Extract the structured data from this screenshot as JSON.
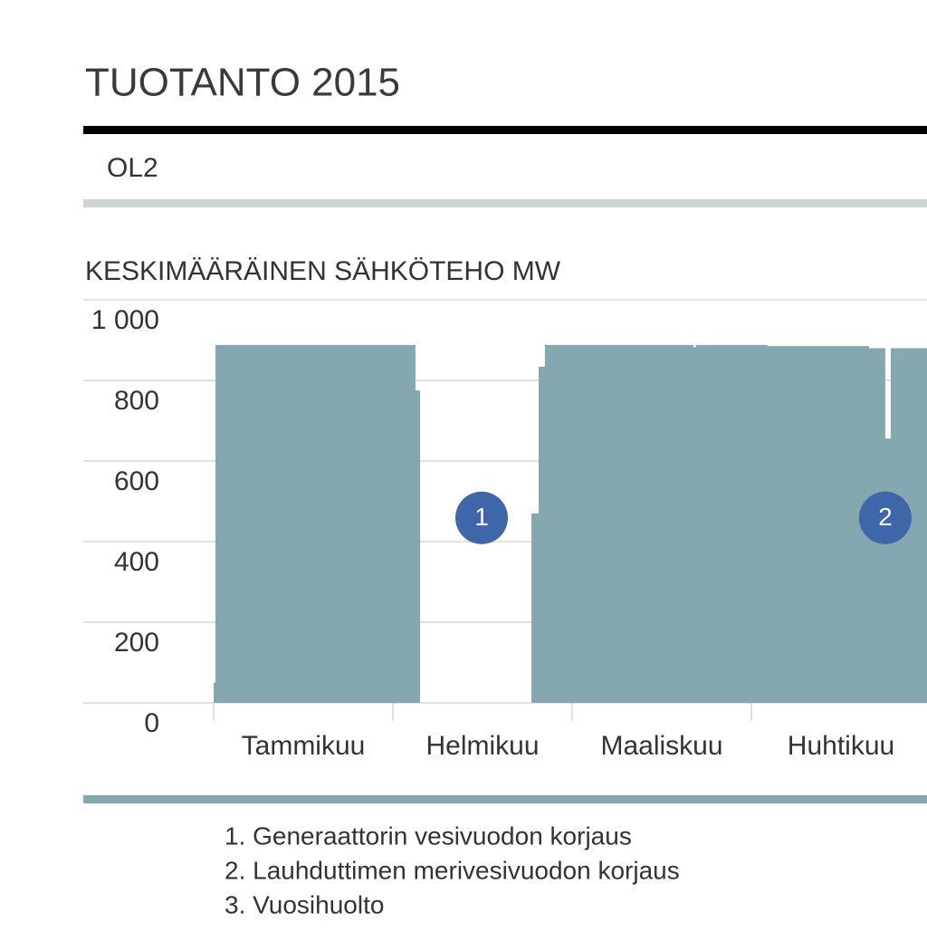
{
  "header": {
    "title": "TUOTANTO 2015",
    "subtitle": "OL2"
  },
  "chart_data": {
    "type": "step-area",
    "y_label": "KESKIMÄÄRÄINEN SÄHKÖTEHO MW",
    "categories": [
      "Tammikuu",
      "Helmikuu",
      "Maaliskuu",
      "Huhtikuu"
    ],
    "xlim": [
      0,
      4
    ],
    "x": [
      0,
      0.01,
      1.126,
      1.152,
      1.773,
      1.813,
      1.848,
      2.677,
      2.69,
      3.09,
      3.657,
      3.747,
      3.778,
      4.0
    ],
    "values": [
      50,
      888,
      775,
      0,
      470,
      834,
      888,
      882,
      888,
      885,
      880,
      656,
      880,
      880
    ],
    "color": "#84a7b0",
    "ylim": [
      0,
      1000
    ],
    "yticks": [
      0,
      200,
      400,
      600,
      800,
      {
        "value": 1000,
        "label": "1 000"
      }
    ],
    "grid": true,
    "annotations": [
      {
        "label": "1",
        "x": 1.495,
        "y": 459
      },
      {
        "label": "2",
        "x": 3.747,
        "y": 459
      }
    ],
    "annotation_color": "#3e66a8"
  },
  "notes": [
    "1. Generaattorin vesivuodon korjaus",
    "2. Lauhduttimen merivesivuodon korjaus",
    "3. Vuosihuolto"
  ]
}
